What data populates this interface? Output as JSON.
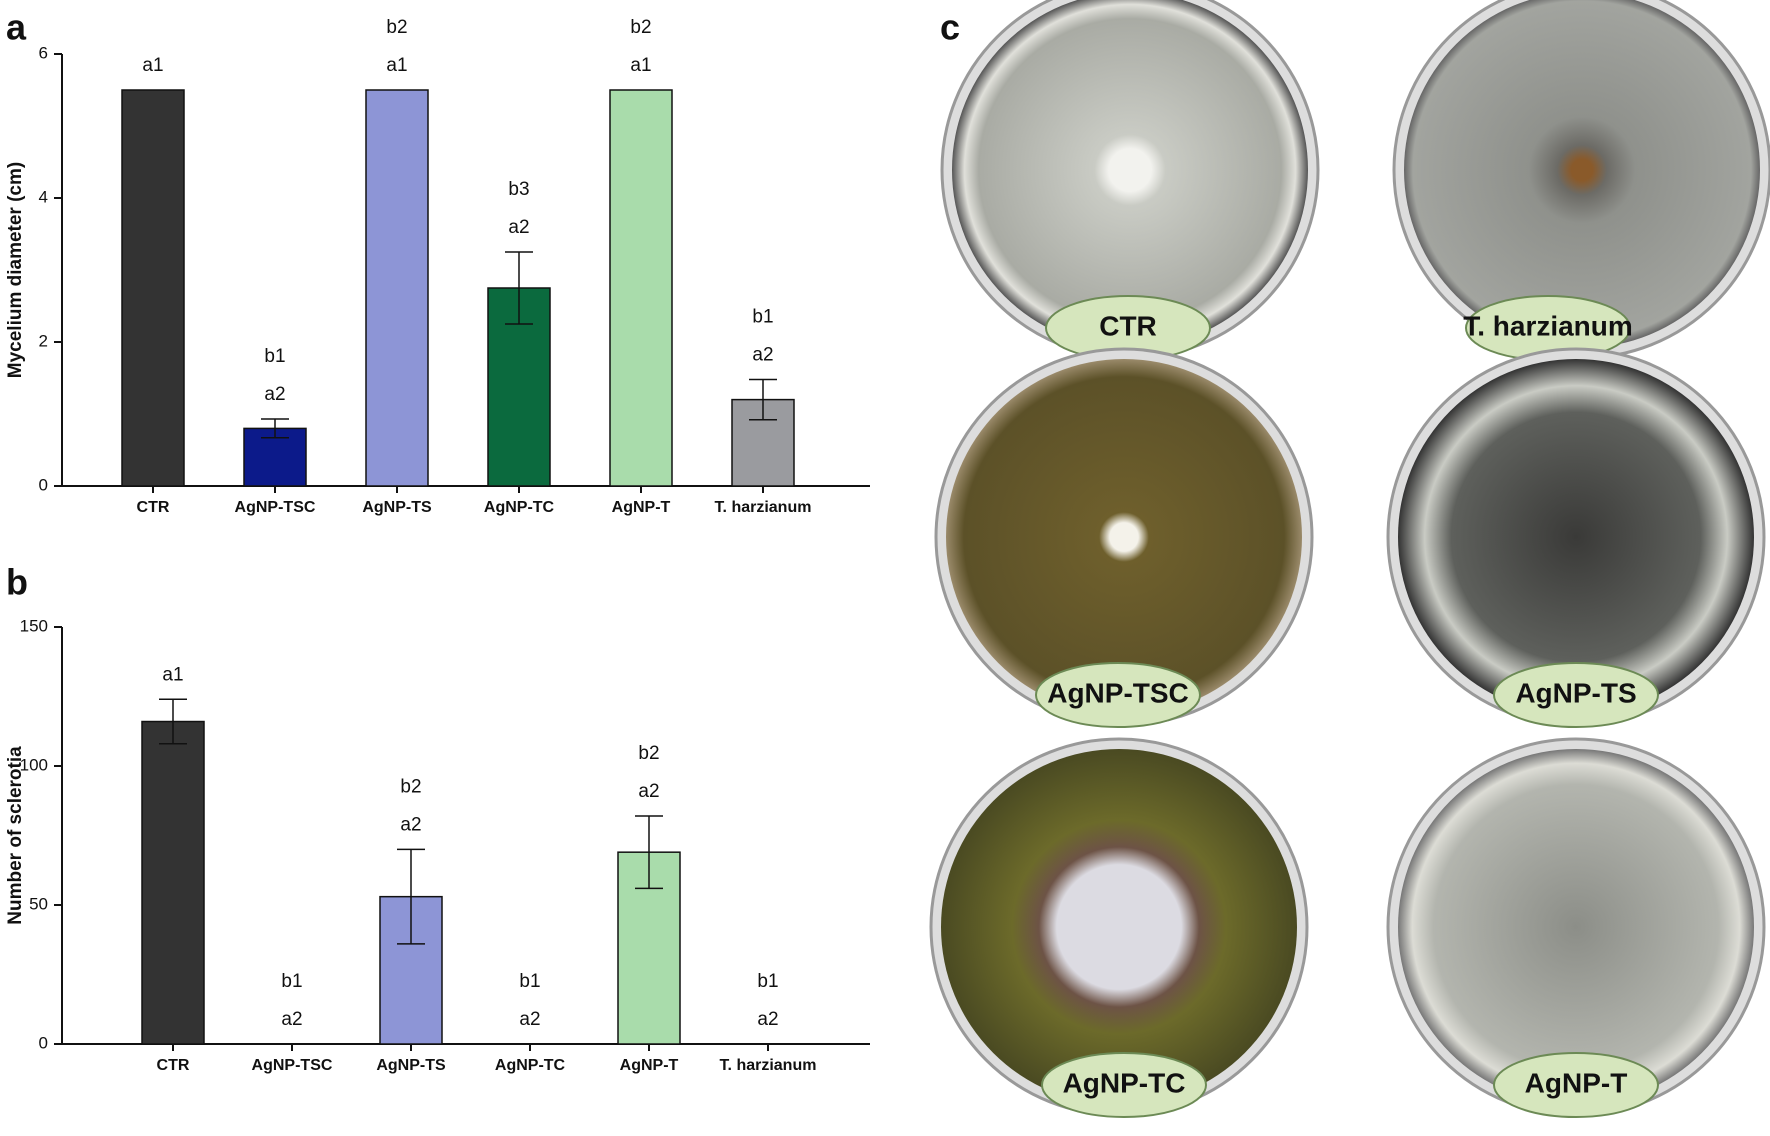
{
  "chart_data": [
    {
      "type": "bar",
      "panel_label": "a",
      "y_label": "Mycelium diameter (cm)",
      "categories": [
        "CTR",
        "AgNP-TSC",
        "AgNP-TS",
        "AgNP-TC",
        "AgNP-T",
        "T. harzianum"
      ],
      "values": [
        5.5,
        0.8,
        5.5,
        2.75,
        5.5,
        1.2
      ],
      "errors": [
        0,
        0.13,
        0,
        0.5,
        0,
        0.28
      ],
      "colors": [
        "#333333",
        "#0c1a8a",
        "#8d95d6",
        "#0b6a3e",
        "#a9dcab",
        "#9a9b9f"
      ],
      "letters": [
        [
          "a1"
        ],
        [
          "b1",
          "a2"
        ],
        [
          "b2",
          "a1"
        ],
        [
          "b3",
          "a2"
        ],
        [
          "b2",
          "a1"
        ],
        [
          "b1",
          "a2"
        ]
      ],
      "ylim": [
        0,
        6
      ],
      "yticks": [
        0,
        2,
        4,
        6
      ]
    },
    {
      "type": "bar",
      "panel_label": "b",
      "y_label": "Number of sclerotia",
      "categories": [
        "CTR",
        "AgNP-TSC",
        "AgNP-TS",
        "AgNP-TC",
        "AgNP-T",
        "T. harzianum"
      ],
      "values": [
        116,
        0,
        53,
        0,
        69,
        0
      ],
      "errors": [
        8,
        0,
        17,
        0,
        13,
        0
      ],
      "colors": [
        "#333333",
        "#0c1a8a",
        "#8d95d6",
        "#0b6a3e",
        "#a9dcab",
        "#9a9b9f"
      ],
      "letters": [
        [
          "a1"
        ],
        [
          "b1",
          "a2"
        ],
        [
          "b2",
          "a2"
        ],
        [
          "b1",
          "a2"
        ],
        [
          "b2",
          "a2"
        ],
        [
          "b1",
          "a2"
        ]
      ],
      "ylim": [
        0,
        150
      ],
      "yticks": [
        0,
        50,
        100,
        150
      ]
    }
  ],
  "panel_c": {
    "label": "c",
    "plates": [
      "CTR",
      "T. harzianum",
      "AgNP-TSC",
      "AgNP-TS",
      "AgNP-TC",
      "AgNP-T"
    ]
  }
}
